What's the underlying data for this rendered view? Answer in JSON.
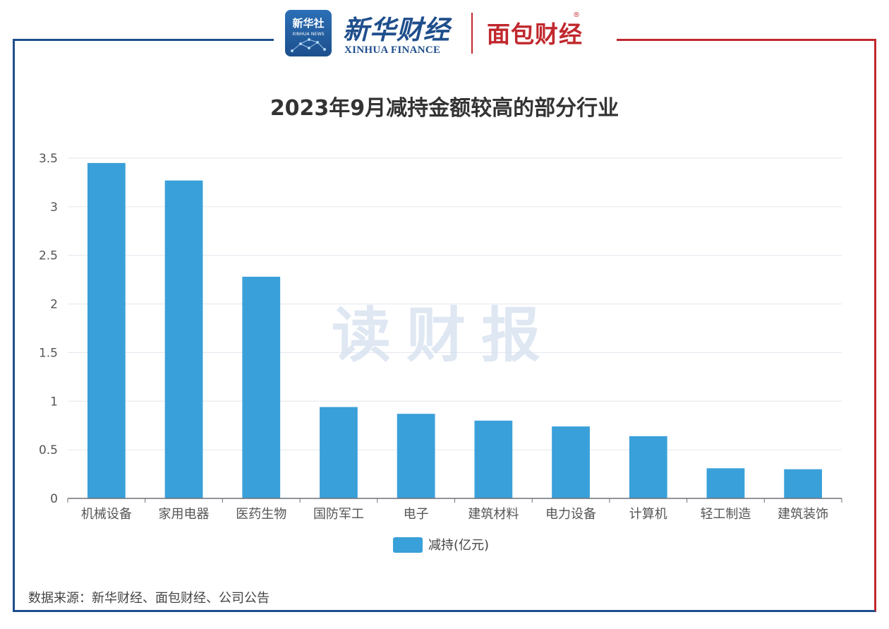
{
  "header": {
    "xinhua_logo_cn": "新华社",
    "xinhua_logo_en": "XINHUA NEWS",
    "finance_logo_cn": "新华财经",
    "finance_logo_en": "XINHUA FINANCE",
    "partner_logo": "面包财经",
    "partner_registered": "®"
  },
  "watermark": "读财报",
  "source": "数据来源：新华财经、面包财经、公司公告",
  "colors": {
    "bar": "#3aa0d9",
    "frame_blue": "#1f4e8c",
    "frame_red": "#c0282e"
  },
  "chart_data": {
    "type": "bar",
    "title": "2023年9月减持金额较高的部分行业",
    "categories": [
      "机械设备",
      "家用电器",
      "医药生物",
      "国防军工",
      "电子",
      "建筑材料",
      "电力设备",
      "计算机",
      "轻工制造",
      "建筑装饰"
    ],
    "series": [
      {
        "name": "减持(亿元)",
        "values": [
          3.45,
          3.27,
          2.28,
          0.94,
          0.87,
          0.8,
          0.74,
          0.64,
          0.31,
          0.3
        ]
      }
    ],
    "yticks": [
      "0",
      "0.5",
      "1",
      "1.5",
      "2",
      "2.5",
      "3",
      "3.5"
    ],
    "ylim": [
      0,
      3.5
    ],
    "grid": true,
    "legend_position": "bottom"
  }
}
